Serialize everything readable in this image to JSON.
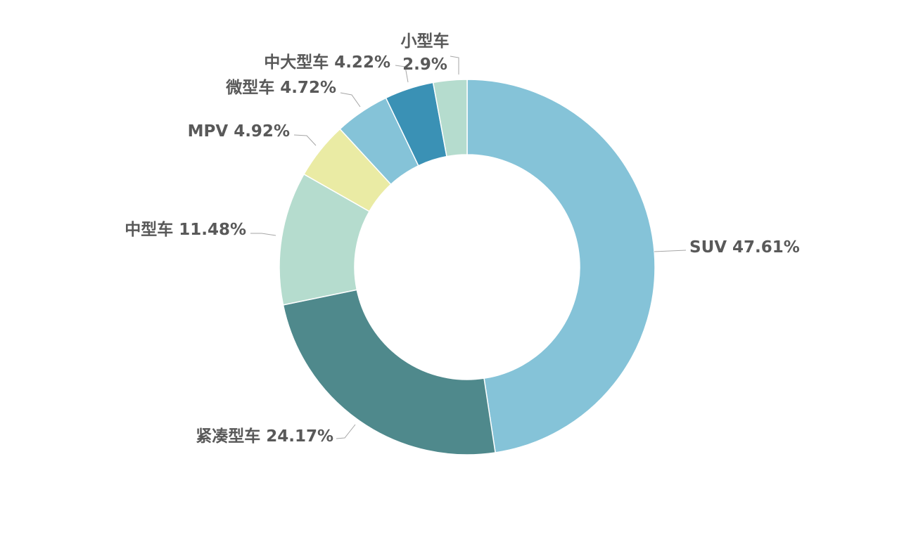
{
  "chart_data": {
    "type": "pie",
    "donut": true,
    "title": "",
    "legend": "none",
    "slices": [
      {
        "label": "SUV",
        "value": 47.61,
        "display": "47.61%",
        "color": "#85C3D8"
      },
      {
        "label": "紧凑型车",
        "value": 24.17,
        "display": "24.17%",
        "color": "#4F898C"
      },
      {
        "label": "中型车",
        "value": 11.48,
        "display": "11.48%",
        "color": "#B5DCCE"
      },
      {
        "label": "MPV",
        "value": 4.92,
        "display": "4.92%",
        "color": "#EAEBA4"
      },
      {
        "label": "微型车",
        "value": 4.72,
        "display": "4.72%",
        "color": "#85C3D8"
      },
      {
        "label": "中大型车",
        "value": 4.22,
        "display": "4.22%",
        "color": "#3A91B5"
      },
      {
        "label": "小型车",
        "value": 2.9,
        "display": "2.9%",
        "color": "#B5DCCE"
      }
    ]
  }
}
